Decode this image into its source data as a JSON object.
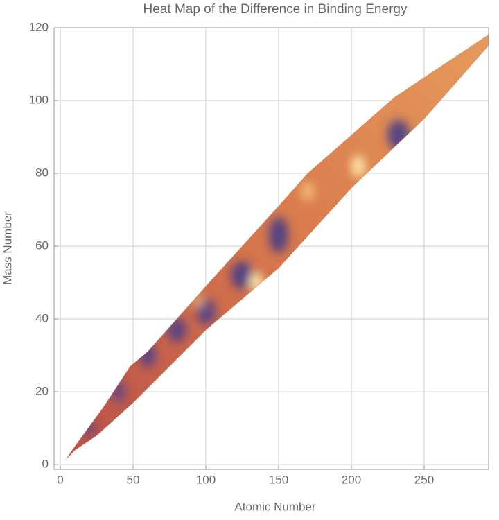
{
  "chart_data": {
    "type": "heatmap",
    "title": "Heat Map of the Difference in Binding Energy",
    "x_label": "Atomic Number",
    "y_label": "Mass Number",
    "xlim": [
      -4.3,
      294.3
    ],
    "ylim": [
      -1.3,
      120
    ],
    "xticks": [
      0,
      50,
      100,
      150,
      200,
      250
    ],
    "yticks": [
      0,
      20,
      40,
      60,
      80,
      100,
      120
    ],
    "grid": true,
    "color": "#d8784c",
    "region": {
      "x": [
        4,
        10,
        30,
        48,
        60,
        100,
        150,
        170,
        230,
        294,
        294,
        250,
        200,
        150,
        100,
        50,
        25,
        10
      ],
      "y": [
        1.5,
        5,
        16,
        27,
        31,
        49,
        71,
        80,
        101,
        118,
        115,
        95,
        76,
        54,
        37,
        17,
        8,
        4
      ]
    }
  }
}
